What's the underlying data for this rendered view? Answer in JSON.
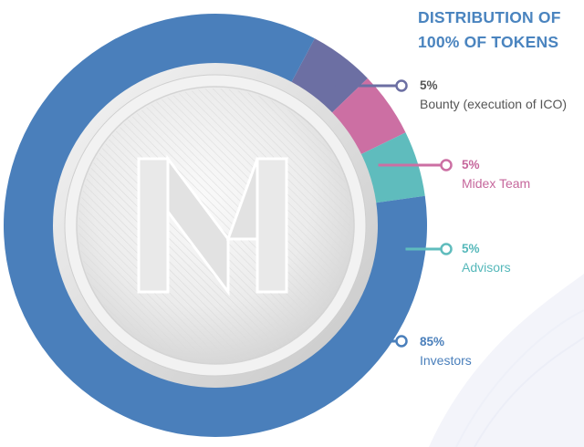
{
  "title": {
    "line1": "DISTRIBUTION OF",
    "line2": "100% OF TOKENS"
  },
  "logo_letters": "M",
  "chart_data": {
    "type": "pie",
    "title": "DISTRIBUTION OF 100% OF TOKENS",
    "slices": [
      {
        "label": "Investors",
        "value": 85,
        "display": "85%",
        "color": "#4a7fbb",
        "text_color": "#4a7fbb"
      },
      {
        "label": "Bounty (execution of ICO)",
        "value": 5,
        "display": "5%",
        "color": "#6c6fa3",
        "text_color": "#555555"
      },
      {
        "label": "Midex Team",
        "value": 5,
        "display": "5%",
        "color": "#cc6fa3",
        "text_color": "#c6679c"
      },
      {
        "label": "Advisors",
        "value": 5,
        "display": "5%",
        "color": "#5fbcbd",
        "text_color": "#55b8ba"
      }
    ],
    "legend": "right"
  }
}
